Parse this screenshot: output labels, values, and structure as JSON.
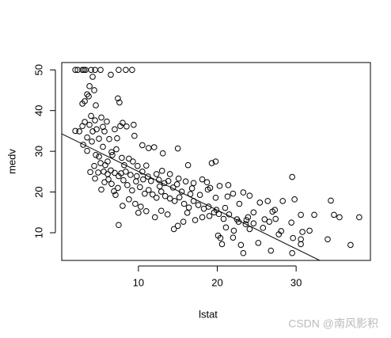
{
  "chart_data": {
    "type": "scatter",
    "x_label": "lstat",
    "y_label": "medv",
    "xlim": [
      0.28,
      39.42
    ],
    "ylim": [
      3.2,
      51.8
    ],
    "xticks": [
      10,
      20,
      30
    ],
    "yticks": [
      10,
      20,
      30,
      40,
      50
    ],
    "color": "#000000",
    "abline": {
      "intercept": 34.55,
      "slope": -0.95
    },
    "watermark": "CSDN @南风影积",
    "x": [
      2.0,
      2.3,
      2.9,
      3.1,
      3.3,
      4.0,
      4.5,
      5.2,
      7.5,
      8.4,
      9.2,
      2.9,
      3.2,
      3.5,
      3.7,
      3.8,
      4.2,
      4.4,
      4.6,
      6.5,
      7.4,
      7.6,
      2.0,
      2.5,
      2.9,
      3.2,
      3.5,
      3.8,
      4.0,
      4.2,
      4.5,
      4.7,
      5.0,
      5.3,
      5.5,
      5.7,
      6.0,
      6.3,
      6.6,
      7.0,
      7.3,
      7.7,
      8.0,
      8.5,
      9.4,
      9.5,
      10.5,
      11.3,
      12.0,
      13.1,
      15.0,
      16.3,
      19.3,
      19.8,
      29.5,
      3.0,
      3.5,
      4.1,
      4.6,
      5.0,
      5.5,
      6.1,
      6.7,
      7.2,
      7.9,
      8.2,
      8.8,
      9.3,
      9.9,
      10.5,
      11.0,
      12.3,
      13.0,
      14.0,
      15.1,
      16.0,
      17.0,
      18.1,
      18.7,
      19.1,
      20.3,
      21.4,
      22.0,
      23.3,
      24.1,
      25.4,
      26.4,
      27.3,
      28.3,
      29.8,
      30.6,
      32.3,
      34.4,
      34.8,
      35.5,
      38.0,
      36.9,
      34.0,
      31.7,
      30.8,
      30.6,
      30.6,
      29.6,
      29.5,
      26.8,
      23.3,
      23.0,
      22.0,
      20.4,
      20.6,
      20.1,
      21.1,
      22.1,
      23.6,
      24.1,
      25.2,
      25.8,
      26.6,
      27.4,
      28.1,
      29.4,
      27.8,
      24.6,
      23.9,
      22.7,
      21.5,
      20.8,
      19.9,
      19.0,
      18.1,
      17.2,
      16.2,
      15.7,
      15.0,
      14.5,
      13.7,
      12.9,
      12.1,
      11.0,
      10.3,
      9.6,
      8.8,
      8.0,
      7.5,
      7.1,
      6.9,
      7.4,
      10.0,
      5.3,
      5.7,
      6.2,
      6.6,
      7.0,
      7.5,
      8.1,
      8.6,
      9.2,
      9.7,
      10.2,
      10.8,
      11.3,
      11.8,
      12.3,
      12.9,
      13.4,
      14.0,
      14.6,
      15.2,
      15.8,
      16.4,
      17.0,
      17.6,
      18.3,
      18.9,
      19.6,
      20.2,
      21.0,
      22.5,
      23.7,
      11.6,
      12.7,
      13.3,
      14.4,
      15.5,
      16.6,
      17.8,
      4.5,
      4.9,
      5.6,
      6.1,
      6.5,
      7.8,
      8.4,
      9.0,
      3.9,
      4.4,
      5.2,
      5.8,
      9.8,
      10.6,
      11.2,
      12.6,
      13.8,
      14.9,
      16.8,
      18.8,
      19.8,
      21.3,
      22.8,
      24.6,
      26.0,
      27.0
    ],
    "series": [
      {
        "values": [
          50,
          50,
          50,
          50,
          50,
          50,
          50,
          50,
          50,
          50,
          50,
          41.7,
          42.3,
          44,
          43.5,
          46,
          48.3,
          45,
          41.3,
          48.8,
          43,
          42,
          35.0,
          34.9,
          36.2,
          37.2,
          33.4,
          36.5,
          38.7,
          34.9,
          37.6,
          35.4,
          33.1,
          38.3,
          36,
          34.9,
          37.3,
          33,
          29.8,
          35.4,
          33.2,
          36.2,
          37,
          36.1,
          36.5,
          33.8,
          31.5,
          30.8,
          31,
          29.5,
          30.7,
          26.6,
          27.1,
          27.5,
          23.7,
          31.6,
          30.1,
          32.4,
          29.1,
          28.7,
          31.1,
          27.5,
          29.1,
          30.5,
          28.4,
          26.6,
          28.2,
          27.5,
          26.4,
          25,
          26.5,
          24.4,
          25.2,
          24.4,
          23.3,
          22.6,
          22.2,
          23.1,
          22.4,
          21,
          21.5,
          21.7,
          19.6,
          19.9,
          19.1,
          17.4,
          17.8,
          15.6,
          17.8,
          18.2,
          14.4,
          14.4,
          17.9,
          14.4,
          13.8,
          13.8,
          7.0,
          8.4,
          10.5,
          10.2,
          8.4,
          7.2,
          8.7,
          5.0,
          5.6,
          5.0,
          7.0,
          8.8,
          8.7,
          7.2,
          9.3,
          11.3,
          10.5,
          12.1,
          10.9,
          7.5,
          11.2,
          12.7,
          13.4,
          10.4,
          12.5,
          9.6,
          12.3,
          13.8,
          12.7,
          14.5,
          13.4,
          15.6,
          14.1,
          13.8,
          13.1,
          14.9,
          12.7,
          11.7,
          10.9,
          14.5,
          15.4,
          13.8,
          15.3,
          16.4,
          17.1,
          18.2,
          16.6,
          11.9,
          19.3,
          20.2,
          21.0,
          14.9,
          20.6,
          22.4,
          23.1,
          22.0,
          24.7,
          23.9,
          22.9,
          21.7,
          20.4,
          22.6,
          21.2,
          19.6,
          20.5,
          19.4,
          18.6,
          20.1,
          19.0,
          18.4,
          17.8,
          18.7,
          17.1,
          16.2,
          17.8,
          16.8,
          15.9,
          16.4,
          15.0,
          14.6,
          16.1,
          13.3,
          13.1,
          22.7,
          21.4,
          22.2,
          21.1,
          20.1,
          19.5,
          19.3,
          23.3,
          24.8,
          25.0,
          24.4,
          25.3,
          24.6,
          25.0,
          24.2,
          24.9,
          26.4,
          27.1,
          26.6,
          23.9,
          23.1,
          23.8,
          23.0,
          22.7,
          21.9,
          20.9,
          20.6,
          18.6,
          18.9,
          17.1,
          15.0,
          13.3,
          15.2
        ]
      }
    ]
  }
}
